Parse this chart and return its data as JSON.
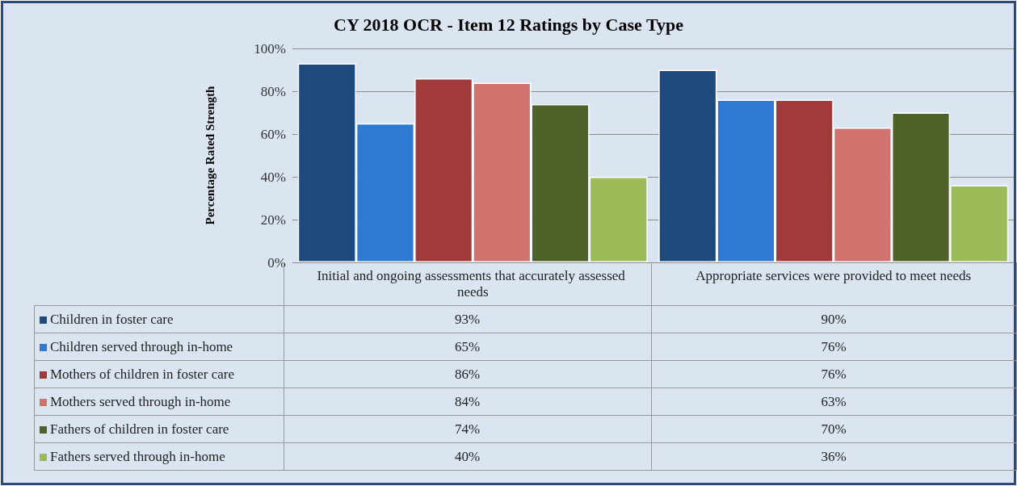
{
  "chart_data": {
    "type": "bar",
    "title": "CY 2018 OCR - Item 12 Ratings by Case Type",
    "ylabel": "Percentage Rated Strength",
    "categories": [
      "Initial and ongoing assessments that accurately assessed needs",
      "Appropriate services were provided to meet needs"
    ],
    "series": [
      {
        "name": "Children in foster care",
        "color": "#1f4a7e",
        "values": [
          93,
          90
        ],
        "value_labels": [
          "93%",
          "90%"
        ]
      },
      {
        "name": "Children served through in-home",
        "color": "#3079d3",
        "values": [
          65,
          76
        ],
        "value_labels": [
          "65%",
          "76%"
        ]
      },
      {
        "name": "Mothers of children in foster care",
        "color": "#a13a3a",
        "values": [
          86,
          76
        ],
        "value_labels": [
          "86%",
          "76%"
        ]
      },
      {
        "name": "Mothers served through in-home",
        "color": "#d0736f",
        "values": [
          84,
          63
        ],
        "value_labels": [
          "84%",
          "63%"
        ]
      },
      {
        "name": "Fathers of children in foster care",
        "color": "#4e6128",
        "values": [
          74,
          70
        ],
        "value_labels": [
          "74%",
          "70%"
        ]
      },
      {
        "name": "Fathers served through in-home",
        "color": "#9bbb59",
        "values": [
          40,
          36
        ],
        "value_labels": [
          "40%",
          "36%"
        ]
      }
    ],
    "ylim": [
      0,
      100
    ],
    "yticks": [
      {
        "value": 0,
        "label": "0%"
      },
      {
        "value": 20,
        "label": "20%"
      },
      {
        "value": 40,
        "label": "40%"
      },
      {
        "value": 60,
        "label": "60%"
      },
      {
        "value": 80,
        "label": "80%"
      },
      {
        "value": 100,
        "label": "100%"
      }
    ],
    "grid": "y",
    "legend": "bottom"
  }
}
